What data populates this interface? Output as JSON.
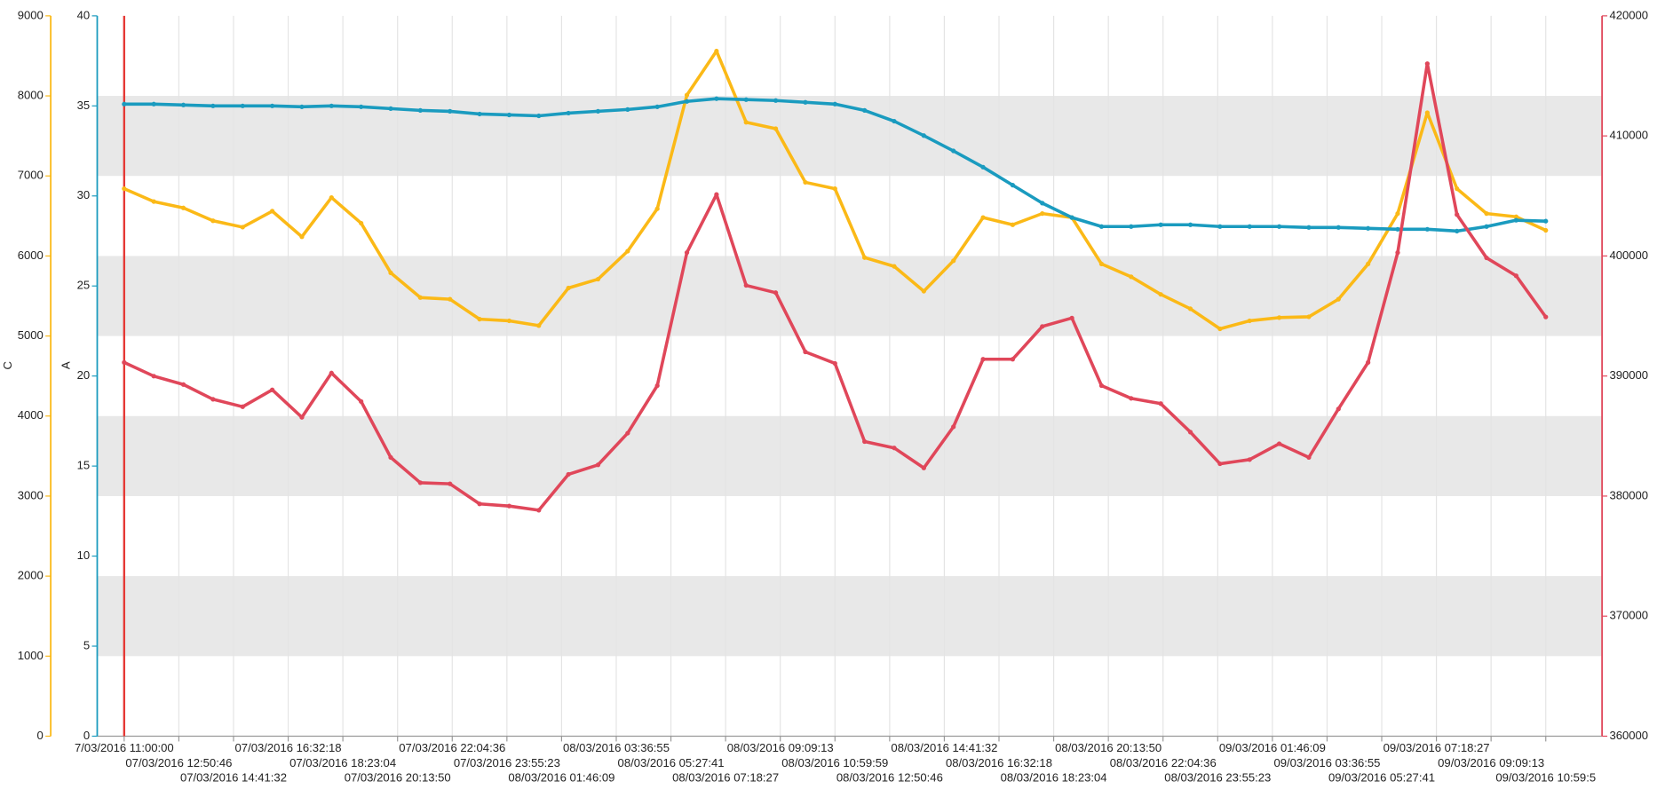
{
  "chart_data": {
    "type": "line",
    "ylabel": "A",
    "y3label": "C",
    "x": [
      0,
      1,
      2,
      3,
      4,
      5,
      6,
      7,
      8,
      9,
      10,
      11,
      12,
      13,
      14,
      15,
      16,
      17,
      18,
      19,
      20,
      21,
      22,
      23,
      24,
      25,
      26,
      27,
      28,
      29,
      30,
      31,
      32,
      33,
      34,
      35,
      36,
      37,
      38,
      39,
      40,
      41,
      42,
      43,
      44,
      45,
      46,
      47,
      48
    ],
    "xlim": [
      -0.91,
      49.9
    ],
    "xticks": [
      {
        "value": 0,
        "label": "7/03/2016 11:00:00"
      },
      {
        "value": 1.846,
        "label": "07/03/2016 12:50:46"
      },
      {
        "value": 3.692,
        "label": "07/03/2016 14:41:32"
      },
      {
        "value": 5.538,
        "label": "07/03/2016 16:32:18"
      },
      {
        "value": 7.384,
        "label": "07/03/2016 18:23:04"
      },
      {
        "value": 9.231,
        "label": "07/03/2016 20:13:50"
      },
      {
        "value": 11.077,
        "label": "07/03/2016 22:04:36"
      },
      {
        "value": 12.923,
        "label": "07/03/2016 23:55:23"
      },
      {
        "value": 14.769,
        "label": "08/03/2016 01:46:09"
      },
      {
        "value": 16.615,
        "label": "08/03/2016 03:36:55"
      },
      {
        "value": 18.461,
        "label": "08/03/2016 05:27:41"
      },
      {
        "value": 20.307,
        "label": "08/03/2016 07:18:27"
      },
      {
        "value": 22.153,
        "label": "08/03/2016 09:09:13"
      },
      {
        "value": 24.0,
        "label": "08/03/2016 10:59:59"
      },
      {
        "value": 25.846,
        "label": "08/03/2016 12:50:46"
      },
      {
        "value": 27.692,
        "label": "08/03/2016 14:41:32"
      },
      {
        "value": 29.538,
        "label": "08/03/2016 16:32:18"
      },
      {
        "value": 31.384,
        "label": "08/03/2016 18:23:04"
      },
      {
        "value": 33.231,
        "label": "08/03/2016 20:13:50"
      },
      {
        "value": 35.077,
        "label": "08/03/2016 22:04:36"
      },
      {
        "value": 36.923,
        "label": "08/03/2016 23:55:23"
      },
      {
        "value": 38.769,
        "label": "09/03/2016 01:46:09"
      },
      {
        "value": 40.615,
        "label": "09/03/2016 03:36:55"
      },
      {
        "value": 42.461,
        "label": "09/03/2016 05:27:41"
      },
      {
        "value": 44.307,
        "label": "09/03/2016 07:18:27"
      },
      {
        "value": 46.153,
        "label": "09/03/2016 09:09:13"
      },
      {
        "value": 48.0,
        "label": "09/03/2016 10:59:5"
      }
    ],
    "ylim": [
      0,
      40
    ],
    "yticks": [
      0,
      5,
      10,
      15,
      20,
      25,
      30,
      35,
      40
    ],
    "y2lim": [
      360000,
      420000
    ],
    "y2ticks": [
      360000,
      370000,
      380000,
      390000,
      400000,
      410000,
      420000
    ],
    "y3lim": [
      0,
      9000
    ],
    "y3ticks": [
      0,
      1000,
      2000,
      3000,
      4000,
      5000,
      6000,
      7000,
      8000,
      9000
    ],
    "axis_colors": {
      "y": "#1a9bbf",
      "y2": "#e0475a",
      "y3": "#fbb917"
    },
    "series": [
      {
        "axis": "y3",
        "color": "#fbb917",
        "values": [
          6840,
          6680,
          6600,
          6440,
          6360,
          6560,
          6240,
          6730,
          6410,
          5790,
          5480,
          5460,
          5210,
          5190,
          5130,
          5600,
          5710,
          6060,
          6590,
          8010,
          8560,
          7670,
          7590,
          6920,
          6840,
          5980,
          5870,
          5560,
          5940,
          6480,
          6390,
          6530,
          6480,
          5900,
          5740,
          5520,
          5340,
          5090,
          5190,
          5230,
          5240,
          5460,
          5900,
          6530,
          7790,
          6840,
          6530,
          6490,
          6320
        ]
      },
      {
        "axis": "y",
        "color": "#1a9bbf",
        "values": [
          35.1,
          35.1,
          35.05,
          35.0,
          35.0,
          35.0,
          34.95,
          35.0,
          34.95,
          34.85,
          34.75,
          34.7,
          34.55,
          34.5,
          34.45,
          34.6,
          34.7,
          34.8,
          34.95,
          35.25,
          35.4,
          35.35,
          35.3,
          35.2,
          35.1,
          34.75,
          34.15,
          33.35,
          32.5,
          31.6,
          30.6,
          29.6,
          28.8,
          28.3,
          28.3,
          28.4,
          28.4,
          28.3,
          28.3,
          28.3,
          28.25,
          28.25,
          28.2,
          28.15,
          28.15,
          28.05,
          28.3,
          28.65,
          28.6
        ]
      },
      {
        "axis": "y2",
        "color": "#e0475a",
        "values": [
          391130,
          389990,
          389290,
          388060,
          387440,
          388850,
          386560,
          390250,
          387880,
          383220,
          381110,
          381020,
          379350,
          379170,
          378820,
          381810,
          382600,
          385240,
          389200,
          400280,
          405120,
          397550,
          396940,
          392010,
          391050,
          384540,
          384010,
          382340,
          385770,
          391400,
          391400,
          394130,
          394830,
          389200,
          388140,
          387700,
          385330,
          382690,
          383040,
          384360,
          383220,
          387260,
          391130,
          400280,
          416020,
          403450,
          399840,
          398350,
          394920
        ]
      }
    ]
  }
}
